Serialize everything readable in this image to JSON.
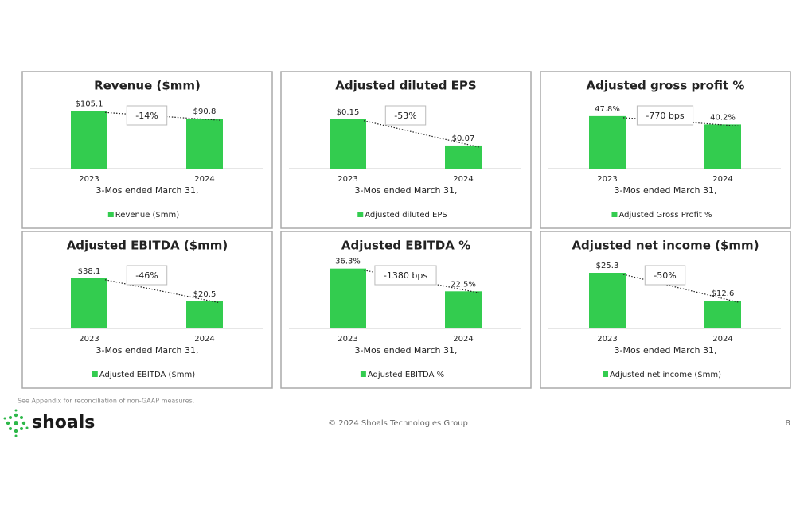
{
  "chart_data": [
    {
      "type": "bar",
      "title": "Revenue ($mm)",
      "categories": [
        "2023",
        "2024"
      ],
      "values": [
        105.1,
        90.8
      ],
      "value_labels": [
        "$105.1",
        "$90.8"
      ],
      "ylim": [
        0,
        120
      ],
      "x_label": "3-Mos ended March 31,",
      "series_name": "Revenue ($mm)",
      "annotation": "-14%",
      "color": "#33cc4f"
    },
    {
      "type": "bar",
      "title": "Adjusted diluted EPS",
      "categories": [
        "2023",
        "2024"
      ],
      "values": [
        0.15,
        0.07
      ],
      "value_labels": [
        "$0.15",
        "$0.07"
      ],
      "ylim": [
        0,
        0.2
      ],
      "x_label": "3-Mos ended March 31,",
      "series_name": "Adjusted diluted EPS",
      "annotation": "-53%",
      "color": "#33cc4f"
    },
    {
      "type": "bar",
      "title": "Adjusted gross profit %",
      "categories": [
        "2023",
        "2024"
      ],
      "values": [
        47.8,
        40.2
      ],
      "value_labels": [
        "47.8%",
        "40.2%"
      ],
      "ylim": [
        0,
        60
      ],
      "x_label": "3-Mos ended March 31,",
      "series_name": "Adjusted Gross Profit %",
      "annotation": "-770 bps",
      "color": "#33cc4f"
    },
    {
      "type": "bar",
      "title": "Adjusted EBITDA ($mm)",
      "categories": [
        "2023",
        "2024"
      ],
      "values": [
        38.1,
        20.5
      ],
      "value_labels": [
        "$38.1",
        "$20.5"
      ],
      "ylim": [
        0,
        50
      ],
      "x_label": "3-Mos ended March 31,",
      "series_name": "Adjusted EBITDA ($mm)",
      "annotation": "-46%",
      "color": "#33cc4f"
    },
    {
      "type": "bar",
      "title": "Adjusted EBITDA %",
      "categories": [
        "2023",
        "2024"
      ],
      "values": [
        36.3,
        22.5
      ],
      "value_labels": [
        "36.3%",
        "22.5%"
      ],
      "ylim": [
        0,
        40
      ],
      "x_label": "3-Mos ended March 31,",
      "series_name": "Adjusted EBITDA %",
      "annotation": "-1380 bps",
      "color": "#33cc4f"
    },
    {
      "type": "bar",
      "title": "Adjusted net income ($mm)",
      "categories": [
        "2023",
        "2024"
      ],
      "values": [
        25.3,
        12.6
      ],
      "value_labels": [
        "$25.3",
        "$12.6"
      ],
      "ylim": [
        0,
        30
      ],
      "x_label": "3-Mos ended March 31,",
      "series_name": "Adjusted net income ($mm)",
      "annotation": "-50%",
      "color": "#33cc4f"
    }
  ],
  "footer": {
    "note": "See Appendix for reconciliation of non-GAAP measures.",
    "logo": "shoals",
    "copyright": "© 2024 Shoals Technologies Group",
    "page": "8"
  }
}
